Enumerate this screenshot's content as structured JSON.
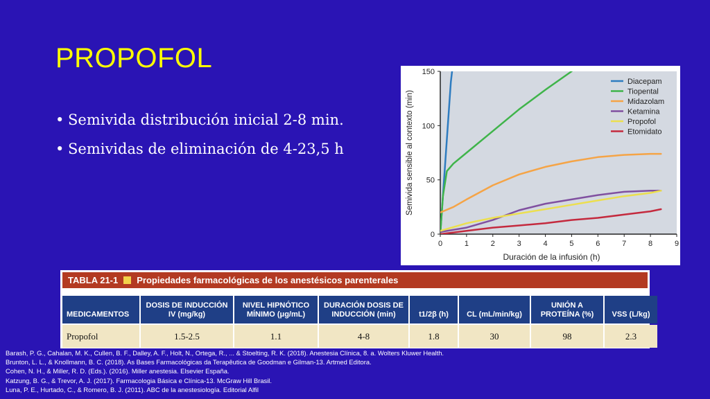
{
  "slide": {
    "title": "PROPOFOL",
    "bullets": [
      "Semivida distribución inicial 2-8 min.",
      "Semividas de eliminación de 4-23,5 h"
    ]
  },
  "chart_data": {
    "type": "line",
    "xlabel": "Duración de la infusión (h)",
    "ylabel": "Semivida sensible al contexto (min)",
    "xlim": [
      0,
      9
    ],
    "ylim": [
      0,
      150
    ],
    "xticks": [
      "0",
      "1",
      "2",
      "3",
      "4",
      "5",
      "6",
      "7",
      "8",
      "9"
    ],
    "yticks": [
      "0",
      "50",
      "100",
      "150"
    ],
    "legend_position": "top-right",
    "series": [
      {
        "name": "Diacepam",
        "color": "#2e7cc0",
        "x": [
          0,
          0.1,
          0.2,
          0.3,
          0.4,
          0.45
        ],
        "y": [
          0,
          35,
          70,
          105,
          140,
          150
        ]
      },
      {
        "name": "Tiopental",
        "color": "#3fb44a",
        "x": [
          0,
          0.1,
          0.25,
          0.5,
          1,
          2,
          3,
          4,
          5
        ],
        "y": [
          0,
          35,
          58,
          65,
          75,
          95,
          115,
          133,
          150
        ]
      },
      {
        "name": "Midazolam",
        "color": "#f5a446",
        "x": [
          0,
          0.5,
          1,
          2,
          3,
          4,
          5,
          6,
          7,
          8,
          8.4
        ],
        "y": [
          20,
          25,
          32,
          45,
          55,
          62,
          67,
          71,
          73,
          74,
          74
        ]
      },
      {
        "name": "Ketamina",
        "color": "#8050a0",
        "x": [
          0,
          1,
          2,
          3,
          4,
          5,
          6,
          7,
          8,
          8.4
        ],
        "y": [
          2,
          6,
          13,
          22,
          28,
          32,
          36,
          39,
          40,
          40
        ]
      },
      {
        "name": "Propofol",
        "color": "#ecdf4e",
        "x": [
          0,
          1,
          2,
          3,
          4,
          5,
          6,
          7,
          8,
          8.4
        ],
        "y": [
          3,
          10,
          15,
          19,
          23,
          27,
          31,
          35,
          38,
          40
        ]
      },
      {
        "name": "Etomidato",
        "color": "#c42a3e",
        "x": [
          0,
          1,
          2,
          3,
          4,
          5,
          6,
          7,
          8,
          8.4
        ],
        "y": [
          0,
          3,
          6,
          8,
          10,
          13,
          15,
          18,
          21,
          23
        ]
      }
    ]
  },
  "table": {
    "number": "TABLA 21-1",
    "title": "Propiedades farmacológicas de los anestésicos parenterales",
    "headers": [
      "MEDICAMENTOS",
      "DOSIS DE INDUCCIÓN IV (mg/kg)",
      "NIVEL HIPNÓTICO MÍNIMO (μg/mL)",
      "DURACIÓN DOSIS DE INDUCCIÓN (min)",
      "t1/2β (h)",
      "CL (mL/min/kg)",
      "UNIÓN A PROTEÍNA (%)",
      "VSS (L/kg)"
    ],
    "rows": [
      [
        "Propofol",
        "1.5-2.5",
        "1.1",
        "4-8",
        "1.8",
        "30",
        "98",
        "2.3"
      ]
    ]
  },
  "references": [
    "Barash, P. G., Cahalan, M. K., Cullen, B. F., Dalley, A. F., Holt, N., Ortega, R., ... & Stoelting, R. K. (2018). Anestesia Clínica, 8. a. Wolters Kluwer Health.",
    "Brunton, L. L., & Knollmann, B. C. (2018). As Bases Farmacológicas da Terapêutica de Goodman e Gilman-13. Artmed Editora.",
    "Cohen, N. H., & Miller, R. D. (Eds.). (2016). Miller anestesia. Elsevier España.",
    "Katzung, B. G., & Trevor, A. J. (2017). Farmacologia Básica e Clínica-13. McGraw Hill Brasil.",
    "Luna, P. E., Hurtado, C., & Romero, B. J. (2011). ABC de la anestesiología. Editorial Alfil"
  ],
  "colors": {
    "background": "#2a14b4",
    "title": "#ffff00",
    "table_header_band": "#b33a22",
    "table_column_header": "#1f3f86",
    "table_row": "#f1e6c4"
  }
}
